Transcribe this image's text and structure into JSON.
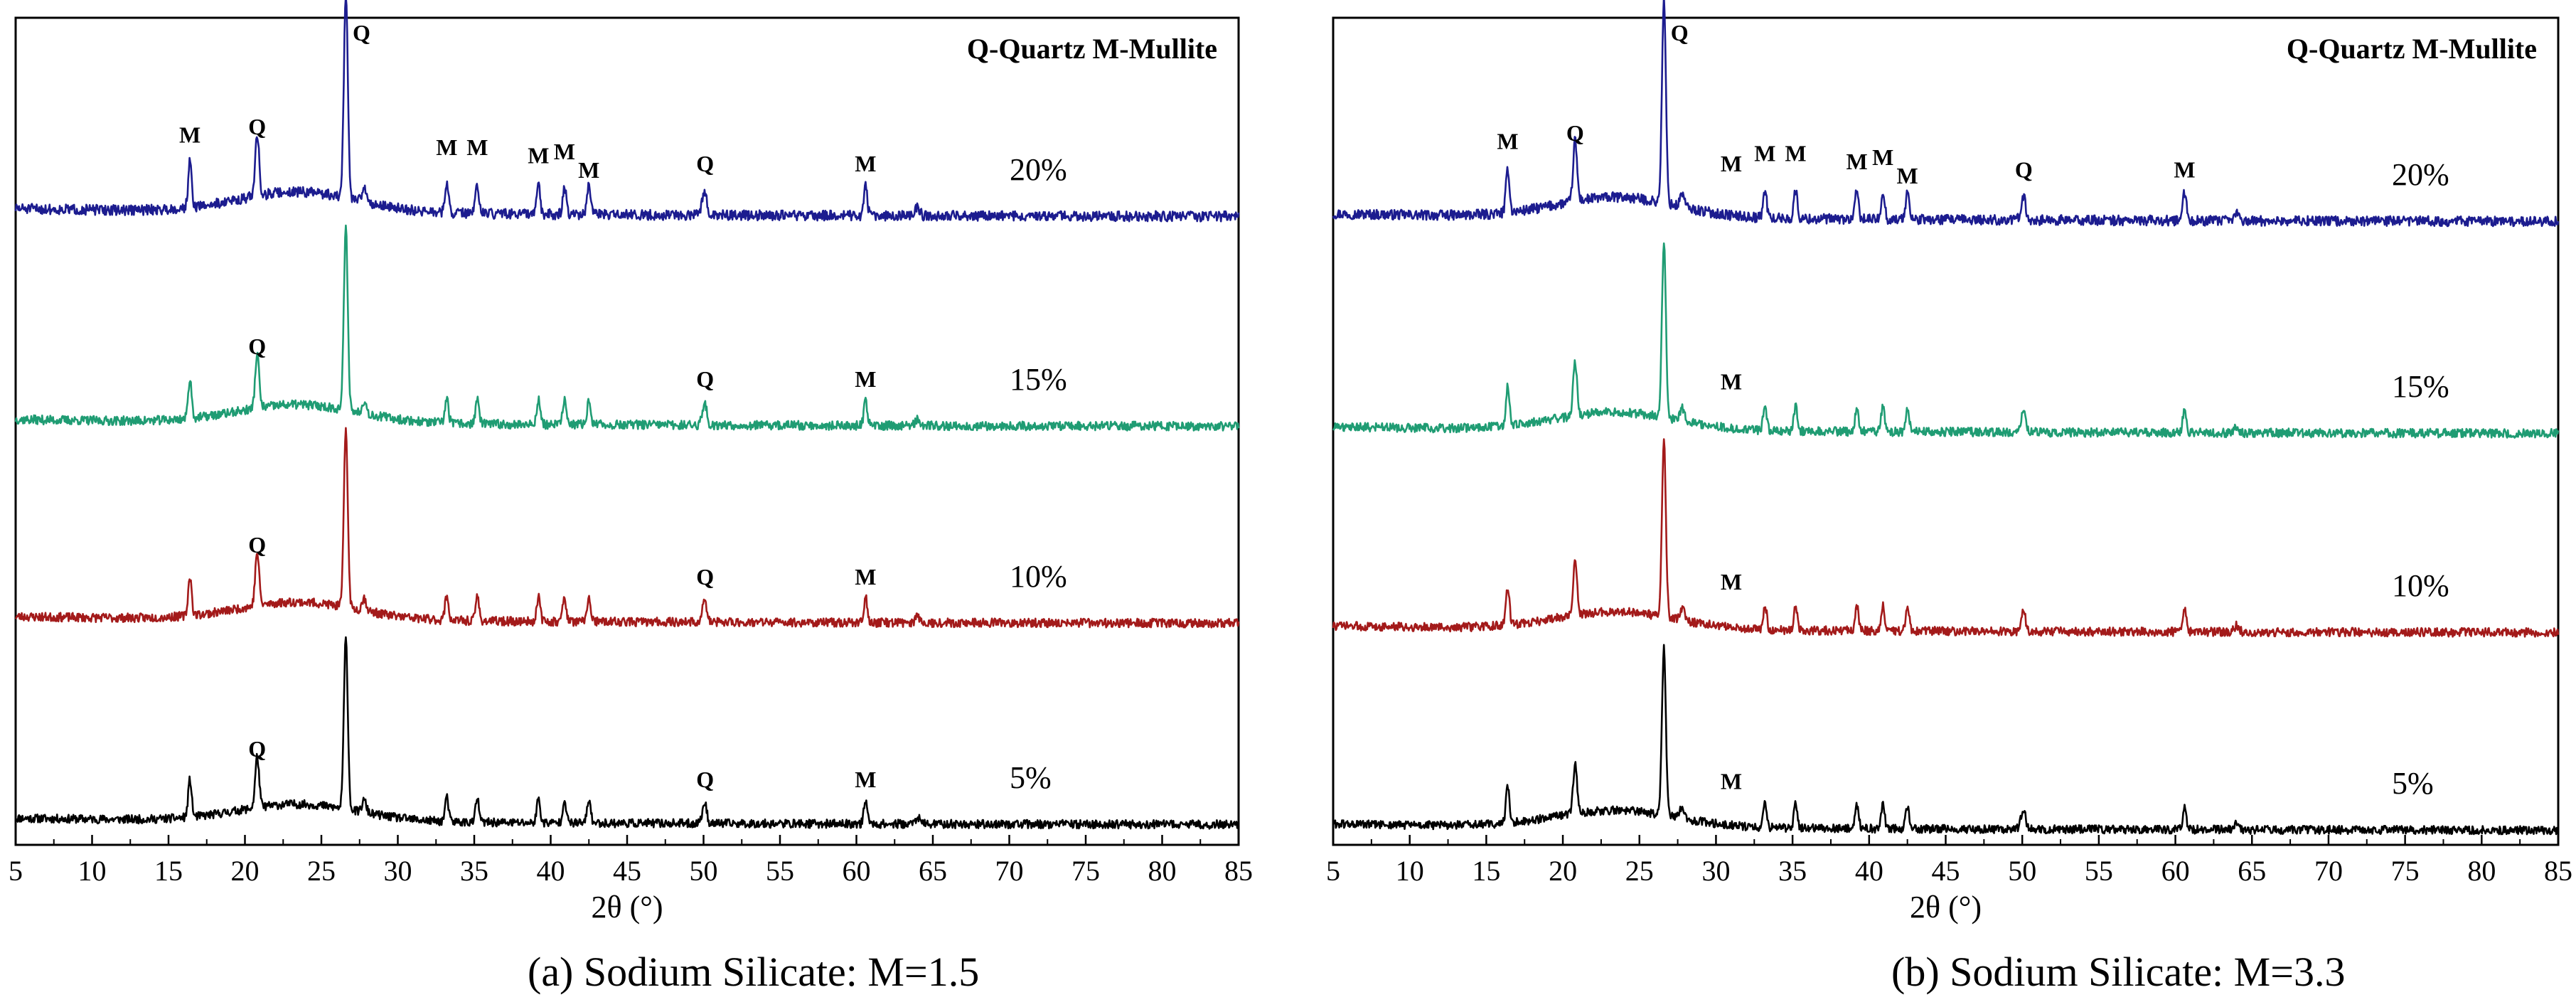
{
  "chart_data": [
    {
      "type": "line",
      "panel_caption": "(a)  Sodium Silicate: M=1.5",
      "legend_text": "Q-Quartz  M-Mullite",
      "xlabel": "2θ (°)",
      "ylabel": "",
      "xlim": [
        5,
        85
      ],
      "xticks": [
        5,
        10,
        15,
        20,
        25,
        30,
        35,
        40,
        45,
        50,
        55,
        60,
        65,
        70,
        75,
        80,
        85
      ],
      "peaks_Q": [
        20.8,
        26.6,
        50.1
      ],
      "peaks_M": [
        16.4,
        33.2,
        35.2,
        39.2,
        40.9,
        42.5,
        60.6
      ],
      "series": [
        {
          "name": "5%",
          "label": "5%",
          "color": "#000000",
          "seed": 11,
          "annotations": [
            {
              "text": "Q",
              "x": 20.8
            },
            {
              "text": "Q",
              "x": 50.1
            },
            {
              "text": "M",
              "x": 60.6
            }
          ]
        },
        {
          "name": "10%",
          "label": "10%",
          "color": "#a31a1a",
          "seed": 23,
          "annotations": [
            {
              "text": "Q",
              "x": 20.8
            },
            {
              "text": "Q",
              "x": 50.1
            },
            {
              "text": "M",
              "x": 60.6
            }
          ]
        },
        {
          "name": "15%",
          "label": "15%",
          "color": "#1f9c73",
          "seed": 37,
          "annotations": [
            {
              "text": "Q",
              "x": 20.8
            },
            {
              "text": "Q",
              "x": 50.1
            },
            {
              "text": "M",
              "x": 60.6
            }
          ]
        },
        {
          "name": "20%",
          "label": "20%",
          "color": "#1c1c8f",
          "seed": 51,
          "annotations": [
            {
              "text": "M",
              "x": 16.4
            },
            {
              "text": "Q",
              "x": 20.8
            },
            {
              "text": "Q",
              "x": 26.6
            },
            {
              "text": "M",
              "x": 33.2
            },
            {
              "text": "M",
              "x": 35.2
            },
            {
              "text": "M",
              "x": 39.2
            },
            {
              "text": "M",
              "x": 40.9
            },
            {
              "text": "M",
              "x": 42.5
            },
            {
              "text": "Q",
              "x": 50.1
            },
            {
              "text": "M",
              "x": 60.6
            }
          ]
        }
      ]
    },
    {
      "type": "line",
      "panel_caption": "(b)  Sodium Silicate: M=3.3",
      "legend_text": "Q-Quartz  M-Mullite",
      "xlabel": "2θ (°)",
      "ylabel": "",
      "xlim": [
        5,
        85
      ],
      "xticks": [
        5,
        10,
        15,
        20,
        25,
        30,
        35,
        40,
        45,
        50,
        55,
        60,
        65,
        70,
        75,
        80,
        85
      ],
      "peaks_Q": [
        20.8,
        26.6,
        50.1
      ],
      "peaks_M": [
        16.4,
        33.2,
        35.2,
        39.2,
        40.9,
        42.5,
        60.6
      ],
      "series": [
        {
          "name": "5%",
          "label": "5%",
          "color": "#000000",
          "seed": 61,
          "annotations": [
            {
              "text": "M",
              "x": 31.0
            }
          ]
        },
        {
          "name": "10%",
          "label": "10%",
          "color": "#a31a1a",
          "seed": 73,
          "annotations": [
            {
              "text": "M",
              "x": 31.0
            }
          ]
        },
        {
          "name": "15%",
          "label": "15%",
          "color": "#1f9c73",
          "seed": 87,
          "annotations": [
            {
              "text": "M",
              "x": 31.0
            }
          ]
        },
        {
          "name": "20%",
          "label": "20%",
          "color": "#1c1c8f",
          "seed": 97,
          "annotations": [
            {
              "text": "M",
              "x": 16.4
            },
            {
              "text": "Q",
              "x": 20.8
            },
            {
              "text": "Q",
              "x": 26.6
            },
            {
              "text": "M",
              "x": 31.0
            },
            {
              "text": "M",
              "x": 33.2
            },
            {
              "text": "M",
              "x": 35.2
            },
            {
              "text": "M",
              "x": 39.2
            },
            {
              "text": "M",
              "x": 40.9
            },
            {
              "text": "M",
              "x": 42.5
            },
            {
              "text": "Q",
              "x": 50.1
            },
            {
              "text": "M",
              "x": 60.6
            }
          ]
        }
      ]
    }
  ]
}
